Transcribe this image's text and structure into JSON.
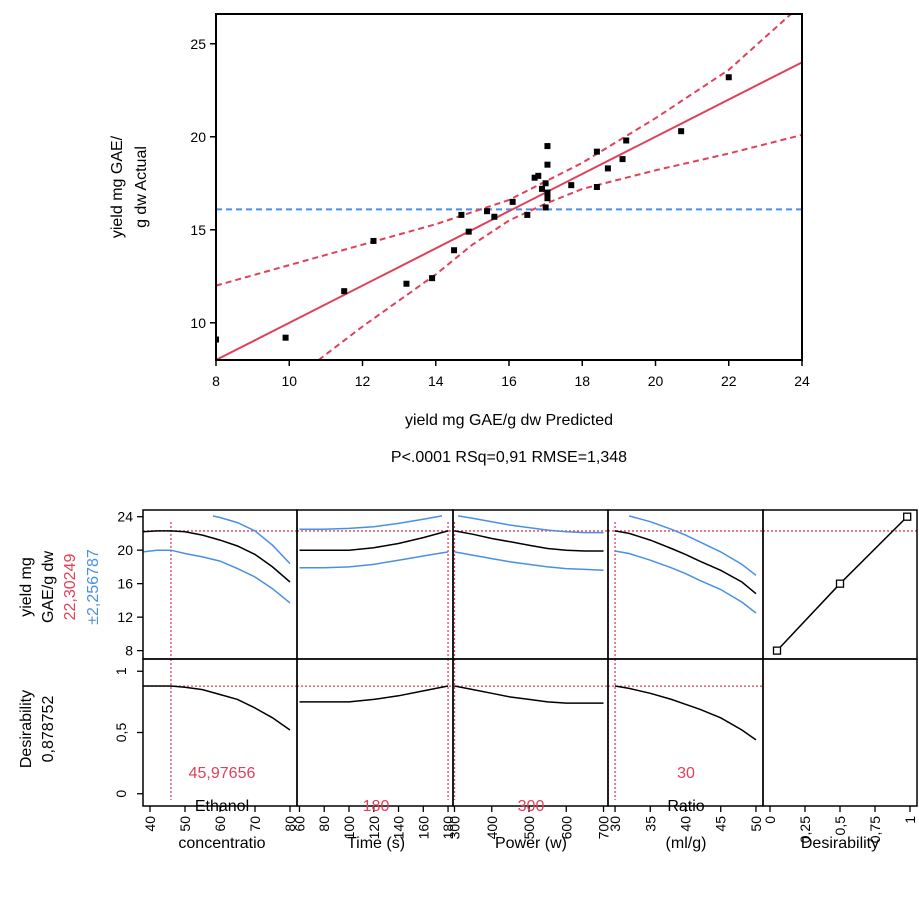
{
  "colors": {
    "red": "#e0405a",
    "blue": "#4a8fe6",
    "black": "#000000"
  },
  "chart_data": [
    {
      "type": "scatter",
      "xlabel": "yield mg GAE/g dw Predicted",
      "ylabel_lines": [
        "yield mg GAE/",
        "g dw Actual"
      ],
      "stats": "P<.0001 RSq=0,91 RMSE=1,348",
      "xlim": [
        8,
        24
      ],
      "ylim": [
        8,
        26.6
      ],
      "xticks": [
        "8",
        "10",
        "12",
        "14",
        "16",
        "18",
        "20",
        "22",
        "24"
      ],
      "yticks": [
        "10",
        "15",
        "20",
        "25"
      ],
      "mean_line": 16.1,
      "fit_line": {
        "slope": 1,
        "intercept": 0
      },
      "confidence_upper": [
        [
          8,
          12.0
        ],
        [
          10,
          13.1
        ],
        [
          12,
          14.2
        ],
        [
          14,
          15.3
        ],
        [
          16,
          16.6
        ],
        [
          18,
          18.6
        ],
        [
          20,
          21.0
        ],
        [
          22,
          23.6
        ],
        [
          23.7,
          26.6
        ]
      ],
      "confidence_lower": [
        [
          10.8,
          8.0
        ],
        [
          12,
          9.8
        ],
        [
          14,
          12.6
        ],
        [
          15,
          14.2
        ],
        [
          16,
          15.5
        ],
        [
          17,
          16.4
        ],
        [
          18,
          17.2
        ],
        [
          20,
          18.2
        ],
        [
          22,
          19.1
        ],
        [
          24,
          20.1
        ]
      ],
      "points": [
        [
          8.0,
          9.1
        ],
        [
          9.9,
          9.2
        ],
        [
          11.5,
          11.7
        ],
        [
          12.3,
          14.4
        ],
        [
          13.2,
          12.1
        ],
        [
          13.9,
          12.4
        ],
        [
          14.5,
          13.9
        ],
        [
          14.7,
          15.8
        ],
        [
          14.9,
          14.9
        ],
        [
          15.4,
          16.0
        ],
        [
          15.6,
          15.7
        ],
        [
          16.1,
          16.5
        ],
        [
          16.5,
          15.8
        ],
        [
          16.7,
          17.8
        ],
        [
          16.8,
          17.9
        ],
        [
          16.9,
          17.2
        ],
        [
          17.0,
          17.5
        ],
        [
          17.0,
          16.2
        ],
        [
          17.05,
          16.7
        ],
        [
          17.05,
          17.0
        ],
        [
          17.05,
          18.5
        ],
        [
          17.05,
          19.5
        ],
        [
          17.7,
          17.4
        ],
        [
          18.4,
          17.3
        ],
        [
          18.4,
          19.2
        ],
        [
          18.7,
          18.3
        ],
        [
          19.1,
          18.8
        ],
        [
          19.2,
          19.8
        ],
        [
          20.7,
          20.3
        ],
        [
          22.0,
          23.2
        ]
      ]
    },
    {
      "type": "line",
      "subtype": "prediction_profiler",
      "row_labels": [
        {
          "name_lines": [
            "yield mg",
            "GAE/g dw"
          ],
          "value": "22,30249",
          "ci": "±2,256787"
        },
        {
          "name_lines": [
            "Desirability",
            "0,878752"
          ]
        }
      ],
      "yield_range": [
        7,
        24.8
      ],
      "yield_ticks": [
        "8",
        "12",
        "16",
        "20",
        "24"
      ],
      "des_range": [
        -0.1,
        1.1
      ],
      "des_ticks": [
        "0",
        "0,5",
        "1"
      ],
      "current_yield": 22.3,
      "current_desirability": 0.878752,
      "factors": [
        {
          "name_lines": [
            "Ethanol",
            "concentratio"
          ],
          "current_value": "45,97656",
          "current": 45.98,
          "range": [
            38,
            82
          ],
          "ticks": [
            "40",
            "50",
            "60",
            "70",
            "80"
          ],
          "predicted": [
            [
              38,
              22.2
            ],
            [
              42,
              22.3
            ],
            [
              46,
              22.3
            ],
            [
              50,
              22.2
            ],
            [
              55,
              21.8
            ],
            [
              60,
              21.2
            ],
            [
              65,
              20.5
            ],
            [
              70,
              19.5
            ],
            [
              75,
              18.0
            ],
            [
              80,
              16.2
            ]
          ],
          "upper": [
            [
              58,
              24.1
            ],
            [
              60,
              23.9
            ],
            [
              65,
              23.3
            ],
            [
              70,
              22.3
            ],
            [
              75,
              20.6
            ],
            [
              80,
              18.4
            ]
          ],
          "lower": [
            [
              38,
              19.8
            ],
            [
              42,
              20.0
            ],
            [
              46,
              20.0
            ],
            [
              50,
              19.6
            ],
            [
              55,
              19.2
            ],
            [
              60,
              18.7
            ],
            [
              65,
              17.8
            ],
            [
              70,
              16.8
            ],
            [
              75,
              15.4
            ],
            [
              80,
              13.7
            ]
          ],
          "desirability": [
            [
              38,
              0.88
            ],
            [
              42,
              0.88
            ],
            [
              46,
              0.88
            ],
            [
              50,
              0.87
            ],
            [
              55,
              0.85
            ],
            [
              60,
              0.81
            ],
            [
              65,
              0.77
            ],
            [
              70,
              0.7
            ],
            [
              75,
              0.62
            ],
            [
              80,
              0.52
            ]
          ]
        },
        {
          "name_lines": [
            "Time (s)"
          ],
          "current_value": "180",
          "current": 180,
          "range": [
            58,
            184
          ],
          "ticks": [
            "60",
            "80",
            "100",
            "120",
            "140",
            "160",
            "180"
          ],
          "predicted": [
            [
              60,
              20.0
            ],
            [
              80,
              20.0
            ],
            [
              100,
              20.0
            ],
            [
              120,
              20.3
            ],
            [
              140,
              20.8
            ],
            [
              160,
              21.5
            ],
            [
              180,
              22.3
            ]
          ],
          "upper": [
            [
              60,
              22.5
            ],
            [
              80,
              22.5
            ],
            [
              100,
              22.6
            ],
            [
              120,
              22.8
            ],
            [
              140,
              23.2
            ],
            [
              160,
              23.7
            ],
            [
              175,
              24.1
            ]
          ],
          "lower": [
            [
              60,
              17.9
            ],
            [
              80,
              17.9
            ],
            [
              100,
              18.0
            ],
            [
              120,
              18.3
            ],
            [
              140,
              18.8
            ],
            [
              160,
              19.3
            ],
            [
              180,
              19.8
            ]
          ],
          "desirability": [
            [
              60,
              0.75
            ],
            [
              80,
              0.75
            ],
            [
              100,
              0.75
            ],
            [
              120,
              0.77
            ],
            [
              140,
              0.8
            ],
            [
              160,
              0.84
            ],
            [
              180,
              0.88
            ]
          ]
        },
        {
          "name_lines": [
            "Power (w)"
          ],
          "current_value": "300",
          "current": 300,
          "range": [
            296,
            712
          ],
          "ticks": [
            "300",
            "400",
            "500",
            "600",
            "700"
          ],
          "predicted": [
            [
              300,
              22.3
            ],
            [
              350,
              21.9
            ],
            [
              400,
              21.4
            ],
            [
              450,
              21.0
            ],
            [
              500,
              20.6
            ],
            [
              550,
              20.2
            ],
            [
              600,
              20.0
            ],
            [
              650,
              19.9
            ],
            [
              700,
              19.9
            ]
          ],
          "upper": [
            [
              310,
              24.1
            ],
            [
              350,
              23.8
            ],
            [
              400,
              23.4
            ],
            [
              450,
              23.0
            ],
            [
              500,
              22.7
            ],
            [
              550,
              22.4
            ],
            [
              600,
              22.2
            ],
            [
              650,
              22.1
            ],
            [
              700,
              22.1
            ]
          ],
          "lower": [
            [
              300,
              19.8
            ],
            [
              350,
              19.4
            ],
            [
              400,
              19.0
            ],
            [
              450,
              18.6
            ],
            [
              500,
              18.3
            ],
            [
              550,
              18.0
            ],
            [
              600,
              17.8
            ],
            [
              650,
              17.7
            ],
            [
              700,
              17.6
            ]
          ],
          "desirability": [
            [
              300,
              0.88
            ],
            [
              350,
              0.85
            ],
            [
              400,
              0.82
            ],
            [
              450,
              0.79
            ],
            [
              500,
              0.77
            ],
            [
              550,
              0.75
            ],
            [
              600,
              0.74
            ],
            [
              650,
              0.74
            ],
            [
              700,
              0.74
            ]
          ]
        },
        {
          "name_lines": [
            "Ratio",
            "(ml/g)"
          ],
          "current_value": "30",
          "current": 30,
          "range": [
            29,
            51
          ],
          "ticks": [
            "30",
            "35",
            "40",
            "45",
            "50"
          ],
          "predicted": [
            [
              30,
              22.3
            ],
            [
              32,
              22.0
            ],
            [
              35,
              21.2
            ],
            [
              38,
              20.2
            ],
            [
              40,
              19.5
            ],
            [
              42,
              18.7
            ],
            [
              45,
              17.6
            ],
            [
              48,
              16.2
            ],
            [
              50,
              14.8
            ]
          ],
          "upper": [
            [
              32,
              24.1
            ],
            [
              35,
              23.4
            ],
            [
              38,
              22.5
            ],
            [
              40,
              21.8
            ],
            [
              42,
              21.0
            ],
            [
              45,
              19.8
            ],
            [
              48,
              18.3
            ],
            [
              50,
              17.0
            ]
          ],
          "lower": [
            [
              30,
              19.9
            ],
            [
              32,
              19.6
            ],
            [
              35,
              18.8
            ],
            [
              38,
              17.9
            ],
            [
              40,
              17.2
            ],
            [
              42,
              16.4
            ],
            [
              45,
              15.3
            ],
            [
              48,
              13.8
            ],
            [
              50,
              12.5
            ]
          ],
          "desirability": [
            [
              30,
              0.88
            ],
            [
              32,
              0.86
            ],
            [
              35,
              0.82
            ],
            [
              38,
              0.77
            ],
            [
              40,
              0.73
            ],
            [
              42,
              0.69
            ],
            [
              45,
              0.62
            ],
            [
              48,
              0.52
            ],
            [
              50,
              0.44
            ]
          ]
        }
      ],
      "desirability_panel": {
        "label": "Desirability",
        "range": [
          -0.05,
          1.05
        ],
        "ticks": [
          "0",
          "0,25",
          "0,5",
          "0,75",
          "1"
        ],
        "tick_values": [
          0,
          0.25,
          0.5,
          0.75,
          1
        ],
        "nodes": [
          [
            0.05,
            8
          ],
          [
            0.5,
            16
          ],
          [
            0.98,
            24
          ]
        ]
      }
    }
  ]
}
